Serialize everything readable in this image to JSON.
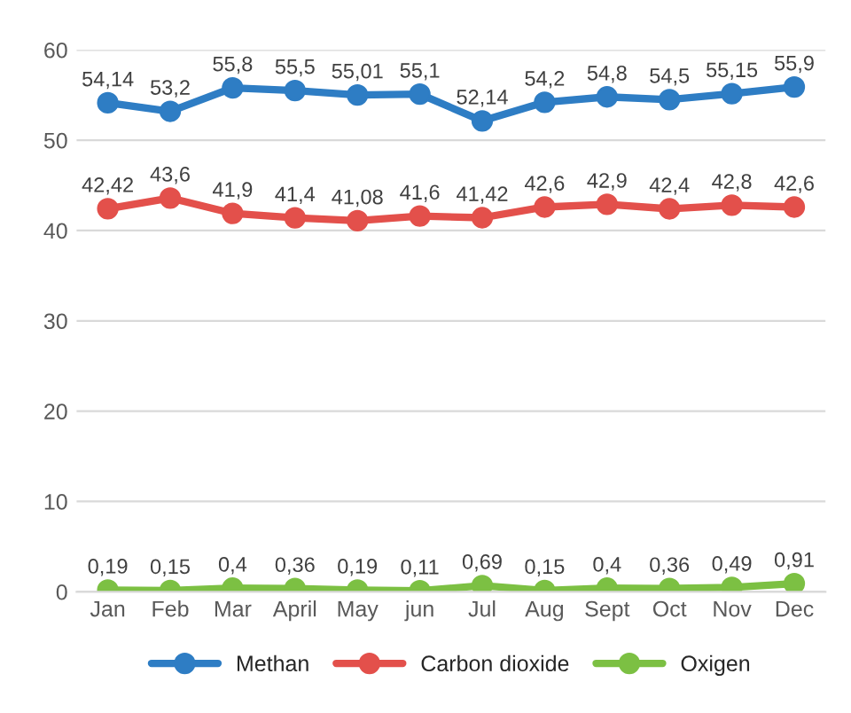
{
  "chart_data": {
    "type": "line",
    "categories": [
      "Jan",
      "Feb",
      "Mar",
      "April",
      "May",
      "jun",
      "Jul",
      "Aug",
      "Sept",
      "Oct",
      "Nov",
      "Dec"
    ],
    "series": [
      {
        "name": "Methan",
        "color": "#2e7dc4",
        "values": [
          54.14,
          53.2,
          55.8,
          55.5,
          55.01,
          55.1,
          52.14,
          54.2,
          54.8,
          54.5,
          55.15,
          55.9
        ],
        "value_labels": [
          "54,14",
          "53,2",
          "55,8",
          "55,5",
          "55,01",
          "55,1",
          "52,14",
          "54,2",
          "54,8",
          "54,5",
          "55,15",
          "55,9"
        ]
      },
      {
        "name": "Carbon dioxide",
        "color": "#e3504b",
        "values": [
          42.42,
          43.6,
          41.9,
          41.4,
          41.08,
          41.6,
          41.42,
          42.6,
          42.9,
          42.4,
          42.8,
          42.6
        ],
        "value_labels": [
          "42,42",
          "43,6",
          "41,9",
          "41,4",
          "41,08",
          "41,6",
          "41,42",
          "42,6",
          "42,9",
          "42,4",
          "42,8",
          "42,6"
        ]
      },
      {
        "name": "Oxigen",
        "color": "#7cc043",
        "values": [
          0.19,
          0.15,
          0.4,
          0.36,
          0.19,
          0.11,
          0.69,
          0.15,
          0.4,
          0.36,
          0.49,
          0.91
        ],
        "value_labels": [
          "0,19",
          "0,15",
          "0,4",
          "0,36",
          "0,19",
          "0,11",
          "0,69",
          "0,15",
          "0,4",
          "0,36",
          "0,49",
          "0,91"
        ]
      }
    ],
    "ylim": [
      0,
      60
    ],
    "yticks": [
      0,
      10,
      20,
      30,
      40,
      50,
      60
    ],
    "grid": "y",
    "legend": "bottom",
    "marker": "circle",
    "line_style": "solid"
  }
}
